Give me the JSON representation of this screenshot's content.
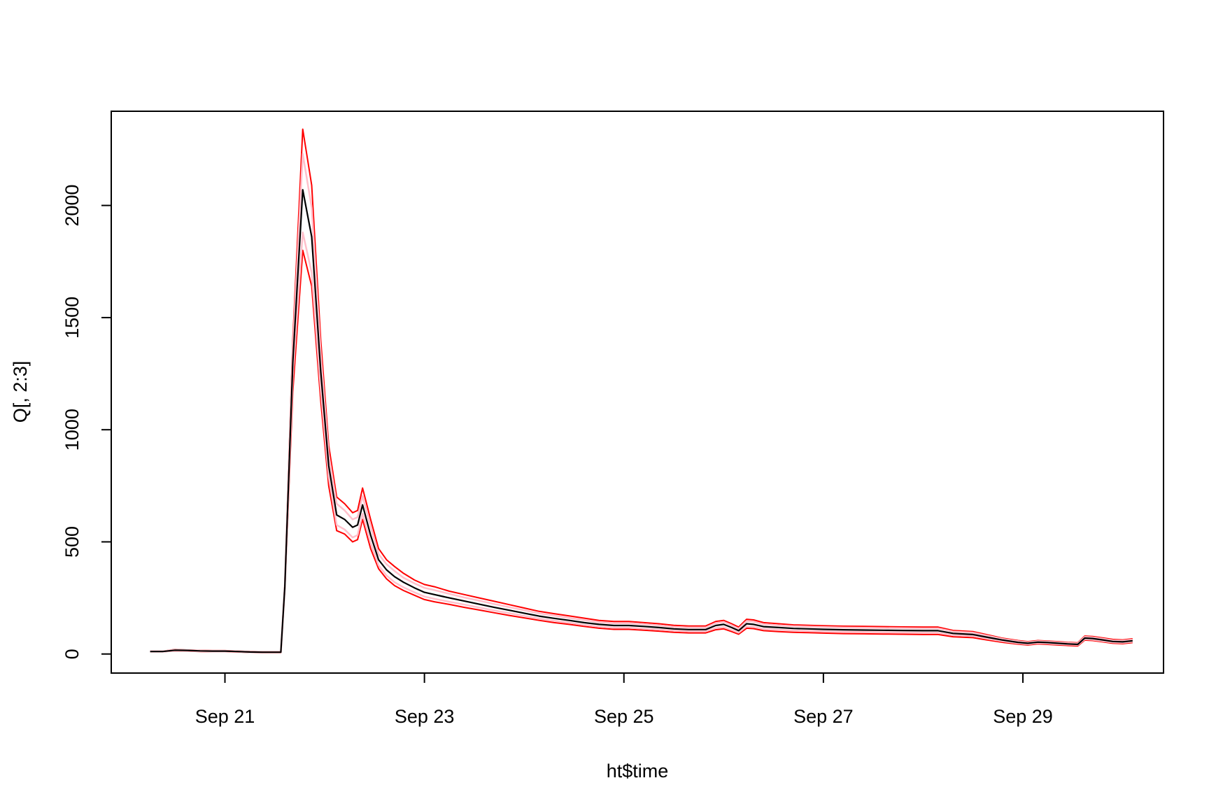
{
  "chart_data": {
    "type": "line",
    "title": "",
    "xlabel": "ht$time",
    "ylabel": "Q[, 2:3]",
    "x_tick_labels": [
      "Sep 21",
      "Sep 23",
      "Sep 25",
      "Sep 27",
      "Sep 29"
    ],
    "x_tick_days": [
      21,
      23,
      25,
      27,
      29
    ],
    "y_ticks": [
      0,
      500,
      1000,
      1500,
      2000
    ],
    "xlim_days": [
      19.86,
      30.41
    ],
    "ylim": [
      -85,
      2420
    ],
    "grid": false,
    "legend": "none",
    "colors": {
      "outer_bound": "#ff0000",
      "inner_bound": "#ffc0cb",
      "central": "#000000"
    },
    "x_days": [
      20.25,
      20.375,
      20.5,
      20.625,
      20.75,
      20.875,
      21.0,
      21.125,
      21.25,
      21.375,
      21.5,
      21.56,
      21.6,
      21.68,
      21.78,
      21.87,
      21.96,
      22.04,
      22.12,
      22.2,
      22.28,
      22.33,
      22.38,
      22.46,
      22.54,
      22.62,
      22.7,
      22.79,
      22.9,
      23.0,
      23.1,
      23.25,
      23.4,
      23.55,
      23.7,
      23.85,
      24.0,
      24.15,
      24.3,
      24.45,
      24.6,
      24.75,
      24.9,
      25.05,
      25.2,
      25.35,
      25.5,
      25.65,
      25.72,
      25.82,
      25.92,
      26.0,
      26.08,
      26.15,
      26.23,
      26.3,
      26.4,
      26.55,
      26.7,
      26.85,
      27.0,
      27.2,
      27.4,
      27.6,
      27.8,
      28.0,
      28.15,
      28.3,
      28.5,
      28.65,
      28.8,
      28.95,
      29.05,
      29.15,
      29.25,
      29.35,
      29.45,
      29.55,
      29.62,
      29.7,
      29.8,
      29.9,
      30.0,
      30.1
    ],
    "series": [
      {
        "role": "outer-upper",
        "color": "#ff0000",
        "values": [
          12,
          12,
          20,
          18,
          16,
          15,
          15,
          13,
          11,
          10,
          10,
          10,
          310,
          1400,
          2340,
          2090,
          1400,
          930,
          700,
          670,
          630,
          640,
          740,
          600,
          470,
          420,
          390,
          360,
          330,
          310,
          300,
          280,
          265,
          250,
          235,
          220,
          205,
          190,
          180,
          170,
          160,
          150,
          145,
          145,
          140,
          135,
          128,
          125,
          125,
          125,
          145,
          150,
          135,
          120,
          155,
          152,
          140,
          135,
          130,
          128,
          126,
          124,
          123,
          122,
          121,
          120,
          120,
          105,
          100,
          85,
          70,
          60,
          55,
          60,
          58,
          55,
          52,
          50,
          80,
          78,
          72,
          65,
          63,
          68
        ]
      },
      {
        "role": "inner-upper",
        "color": "#ffc0cb",
        "values": [
          12,
          12,
          19,
          17,
          15,
          14,
          14,
          12,
          10,
          9,
          9,
          9,
          305,
          1360,
          2230,
          1990,
          1340,
          890,
          670,
          640,
          600,
          610,
          705,
          570,
          445,
          400,
          370,
          340,
          315,
          295,
          285,
          268,
          252,
          238,
          223,
          209,
          195,
          181,
          171,
          161,
          151,
          142,
          137,
          137,
          133,
          128,
          121,
          118,
          118,
          118,
          138,
          143,
          128,
          113,
          147,
          144,
          133,
          128,
          124,
          122,
          120,
          118,
          117,
          116,
          115,
          114,
          114,
          100,
          95,
          81,
          67,
          57,
          52,
          57,
          55,
          52,
          49,
          47,
          76,
          74,
          68,
          61,
          59,
          64
        ]
      },
      {
        "role": "central",
        "color": "#000000",
        "values": [
          11,
          11,
          17,
          16,
          14,
          13,
          13,
          11,
          9,
          8,
          8,
          8,
          300,
          1300,
          2070,
          1860,
          1260,
          840,
          620,
          600,
          565,
          575,
          665,
          530,
          420,
          375,
          345,
          320,
          295,
          275,
          265,
          250,
          236,
          222,
          208,
          195,
          182,
          169,
          159,
          150,
          140,
          132,
          127,
          127,
          123,
          118,
          112,
          109,
          109,
          109,
          127,
          132,
          118,
          104,
          135,
          132,
          122,
          118,
          114,
          112,
          110,
          108,
          107,
          106,
          105,
          104,
          104,
          92,
          87,
          74,
          62,
          52,
          48,
          53,
          51,
          48,
          45,
          43,
          71,
          69,
          63,
          56,
          54,
          59
        ]
      },
      {
        "role": "inner-lower",
        "color": "#ffc0cb",
        "values": [
          10,
          10,
          15,
          14,
          12,
          11,
          11,
          10,
          8,
          7,
          7,
          7,
          295,
          1240,
          1880,
          1700,
          1180,
          790,
          575,
          555,
          520,
          530,
          625,
          495,
          395,
          350,
          320,
          297,
          275,
          256,
          246,
          233,
          220,
          207,
          194,
          182,
          170,
          158,
          148,
          140,
          130,
          122,
          117,
          117,
          113,
          109,
          104,
          101,
          101,
          101,
          116,
          120,
          107,
          95,
          123,
          121,
          112,
          108,
          105,
          103,
          101,
          99,
          98,
          97,
          96,
          95,
          95,
          84,
          80,
          68,
          57,
          48,
          44,
          49,
          47,
          44,
          42,
          40,
          66,
          64,
          58,
          52,
          50,
          55
        ]
      },
      {
        "role": "outer-lower",
        "color": "#ff0000",
        "values": [
          10,
          10,
          14,
          13,
          11,
          10,
          10,
          9,
          7,
          6,
          6,
          6,
          290,
          1170,
          1800,
          1640,
          1130,
          750,
          550,
          535,
          500,
          510,
          600,
          470,
          380,
          335,
          305,
          283,
          262,
          243,
          233,
          221,
          208,
          196,
          184,
          172,
          161,
          150,
          140,
          132,
          123,
          115,
          110,
          110,
          106,
          102,
          97,
          94,
          94,
          94,
          108,
          112,
          100,
          88,
          115,
          113,
          104,
          100,
          97,
          95,
          93,
          91,
          90,
          89,
          88,
          87,
          87,
          77,
          73,
          62,
          52,
          44,
          40,
          45,
          43,
          40,
          38,
          36,
          62,
          60,
          54,
          48,
          46,
          51
        ]
      }
    ]
  }
}
